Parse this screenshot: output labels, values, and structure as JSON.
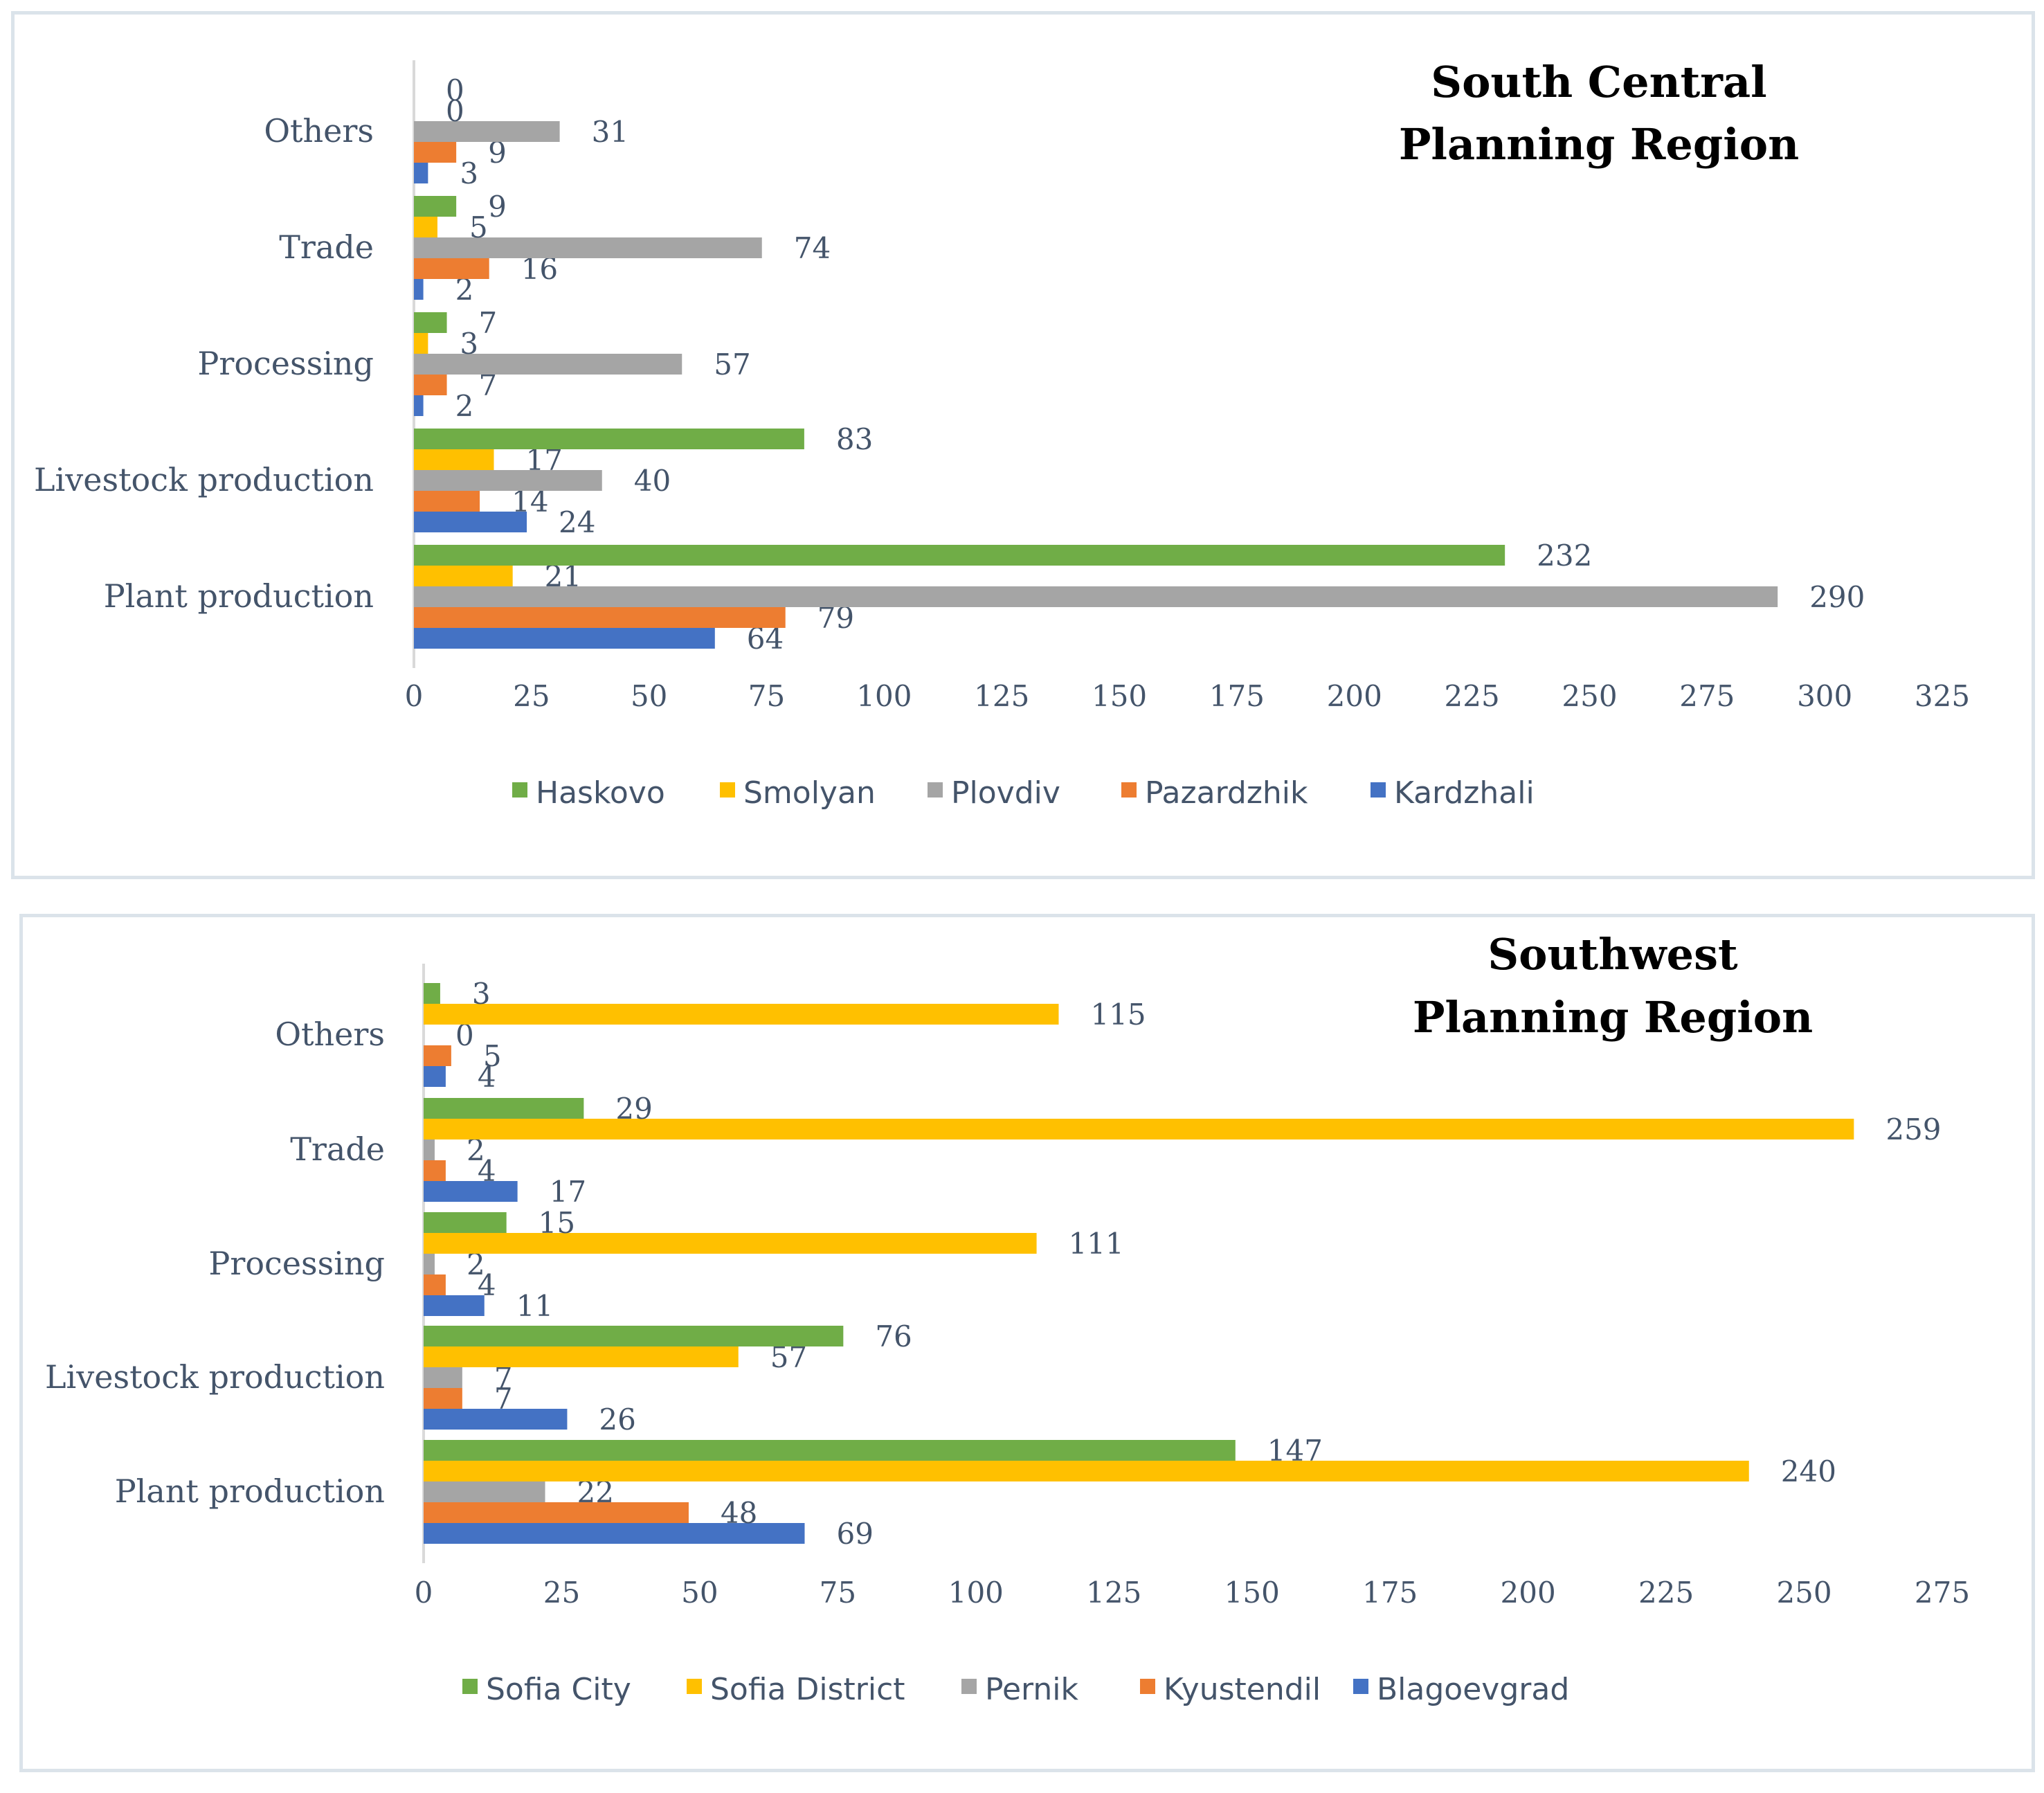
{
  "chart_data": [
    {
      "type": "bar",
      "orientation": "horizontal",
      "title_lines": [
        "South Central",
        "Planning Region"
      ],
      "categories": [
        "Plant production",
        "Livestock production",
        "Processing",
        "Trade",
        "Others"
      ],
      "xlim": [
        0,
        325
      ],
      "xticks": [
        0,
        25,
        50,
        75,
        100,
        125,
        150,
        175,
        200,
        225,
        250,
        275,
        300,
        325
      ],
      "series": [
        {
          "name": "Kardzhali",
          "color": "#4472c4",
          "values": [
            64,
            24,
            2,
            2,
            3
          ]
        },
        {
          "name": "Pazardzhik",
          "color": "#ed7d31",
          "values": [
            79,
            14,
            7,
            16,
            9
          ]
        },
        {
          "name": "Plovdiv",
          "color": "#a5a5a5",
          "values": [
            290,
            40,
            57,
            74,
            31
          ]
        },
        {
          "name": "Smolyan",
          "color": "#ffc000",
          "values": [
            21,
            17,
            3,
            5,
            0
          ]
        },
        {
          "name": "Haskovo",
          "color": "#70ad47",
          "values": [
            232,
            83,
            7,
            9,
            0
          ]
        }
      ],
      "legend_order": [
        "Haskovo",
        "Smolyan",
        "Plovdiv",
        "Pazardzhik",
        "Kardzhali"
      ],
      "legend": "bottom",
      "grid": false
    },
    {
      "type": "bar",
      "orientation": "horizontal",
      "title_lines": [
        "Southwest",
        "Planning Region"
      ],
      "categories": [
        "Plant production",
        "Livestock production",
        "Processing",
        "Trade",
        "Others"
      ],
      "xlim": [
        0,
        275
      ],
      "xticks": [
        0,
        25,
        50,
        75,
        100,
        125,
        150,
        175,
        200,
        225,
        250,
        275
      ],
      "series": [
        {
          "name": "Blagoevgrad",
          "color": "#4472c4",
          "values": [
            69,
            26,
            11,
            17,
            4
          ]
        },
        {
          "name": "Kyustendil",
          "color": "#ed7d31",
          "values": [
            48,
            7,
            4,
            4,
            5
          ]
        },
        {
          "name": "Pernik",
          "color": "#a5a5a5",
          "values": [
            22,
            7,
            2,
            2,
            0
          ]
        },
        {
          "name": "Sofia District",
          "color": "#ffc000",
          "values": [
            240,
            57,
            111,
            259,
            115
          ]
        },
        {
          "name": "Sofia City",
          "color": "#70ad47",
          "values": [
            147,
            76,
            15,
            29,
            3
          ]
        }
      ],
      "legend_order": [
        "Sofia City",
        "Sofia District",
        "Pernik",
        "Kyustendil",
        "Blagoevgrad"
      ],
      "legend": "bottom",
      "grid": false
    }
  ]
}
